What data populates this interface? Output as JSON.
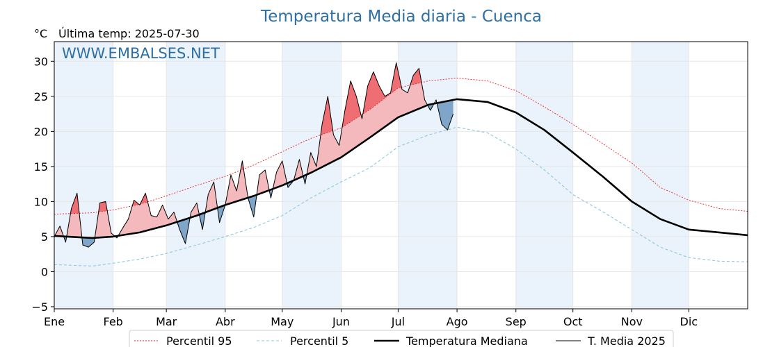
{
  "chart_data": {
    "type": "line",
    "title": "Temperatura Media diaria - Cuenca",
    "unit_label": "°C",
    "last_temp_label": "Última temp: 2025-07-30",
    "watermark": "WWW.EMBALSES.NET",
    "xlim": [
      0,
      365
    ],
    "ylim": [
      -5.3,
      32.8
    ],
    "y_ticks": [
      -5,
      0,
      5,
      10,
      15,
      20,
      25,
      30
    ],
    "y_tick_labels": [
      "−5",
      "0",
      "5",
      "10",
      "15",
      "20",
      "25",
      "30"
    ],
    "months": [
      "Ene",
      "Feb",
      "Mar",
      "Abr",
      "May",
      "Jun",
      "Jul",
      "Ago",
      "Sep",
      "Oct",
      "Nov",
      "Dic"
    ],
    "month_starts": [
      0,
      31,
      59,
      90,
      120,
      151,
      181,
      212,
      243,
      273,
      304,
      334
    ],
    "grid": true,
    "legend_position": "bottom",
    "colors": {
      "p95": "#e8222b",
      "p5": "#8ec7dc",
      "median": "#000000",
      "year": "#000000",
      "above_median": "#f4b9bc",
      "above_p95": "#ef6e73",
      "below_median": "#7fa6c9",
      "band": "#eaf2fb",
      "title": "#2e6fa3"
    },
    "series": [
      {
        "name": "Percentil 95",
        "key": "p95",
        "x": [
          0,
          20,
          31,
          45,
          59,
          75,
          90,
          105,
          120,
          135,
          151,
          166,
          181,
          197,
          212,
          228,
          243,
          258,
          273,
          289,
          304,
          319,
          334,
          350,
          365
        ],
        "y": [
          8.2,
          8.4,
          8.8,
          9.6,
          10.8,
          12.3,
          13.6,
          15.2,
          17.1,
          19.0,
          20.5,
          23.1,
          26.2,
          27.2,
          27.6,
          27.2,
          25.8,
          23.5,
          21.0,
          18.2,
          15.5,
          12.0,
          10.2,
          9.0,
          8.6
        ]
      },
      {
        "name": "Percentil 5",
        "key": "p5",
        "x": [
          0,
          20,
          31,
          45,
          59,
          75,
          90,
          105,
          120,
          135,
          151,
          166,
          181,
          197,
          212,
          228,
          243,
          258,
          273,
          289,
          304,
          319,
          334,
          350,
          365
        ],
        "y": [
          1.0,
          0.8,
          1.2,
          1.8,
          2.6,
          3.8,
          5.0,
          6.3,
          8.0,
          10.5,
          12.8,
          14.8,
          17.8,
          19.5,
          20.6,
          19.8,
          17.5,
          14.5,
          11.0,
          8.5,
          6.0,
          3.5,
          2.0,
          1.5,
          1.4
        ]
      },
      {
        "name": "Temperatura Mediana",
        "key": "median",
        "x": [
          0,
          20,
          31,
          45,
          59,
          75,
          90,
          105,
          120,
          135,
          151,
          166,
          181,
          197,
          212,
          228,
          243,
          258,
          273,
          289,
          304,
          319,
          334,
          350,
          365
        ],
        "y": [
          5.1,
          4.8,
          5.0,
          5.6,
          6.6,
          8.0,
          9.5,
          10.8,
          12.3,
          14.1,
          16.3,
          19.1,
          22.0,
          23.8,
          24.6,
          24.2,
          22.7,
          20.2,
          17.0,
          13.5,
          10.0,
          7.5,
          6.0,
          5.6,
          5.2
        ]
      },
      {
        "name": "T. Media 2025",
        "key": "year",
        "x": [
          0,
          3,
          6,
          9,
          12,
          15,
          18,
          21,
          24,
          27,
          30,
          33,
          36,
          39,
          42,
          45,
          48,
          51,
          54,
          57,
          60,
          63,
          66,
          69,
          72,
          75,
          78,
          81,
          84,
          87,
          90,
          93,
          96,
          99,
          102,
          105,
          108,
          111,
          114,
          117,
          120,
          123,
          126,
          129,
          132,
          135,
          138,
          141,
          144,
          147,
          150,
          153,
          156,
          159,
          162,
          165,
          168,
          171,
          174,
          177,
          180,
          183,
          186,
          189,
          192,
          195,
          198,
          201,
          204,
          207,
          210
        ],
        "y": [
          5.0,
          6.5,
          4.2,
          9.0,
          11.2,
          3.8,
          3.5,
          4.2,
          9.8,
          10.0,
          5.5,
          4.8,
          6.2,
          7.5,
          10.2,
          9.5,
          11.2,
          8.0,
          7.8,
          9.5,
          7.5,
          8.5,
          6.0,
          4.0,
          8.5,
          9.8,
          6.0,
          11.0,
          12.8,
          7.0,
          9.5,
          13.8,
          11.5,
          15.8,
          10.5,
          7.8,
          13.8,
          14.5,
          10.5,
          14.2,
          15.8,
          12.0,
          13.0,
          16.0,
          12.5,
          17.0,
          15.0,
          21.0,
          25.0,
          19.5,
          18.0,
          23.0,
          27.2,
          25.0,
          21.8,
          26.5,
          28.5,
          26.5,
          25.0,
          25.5,
          29.8,
          26.0,
          25.5,
          28.0,
          29.0,
          24.5,
          23.0,
          24.5,
          21.0,
          20.2,
          22.5
        ]
      }
    ]
  }
}
